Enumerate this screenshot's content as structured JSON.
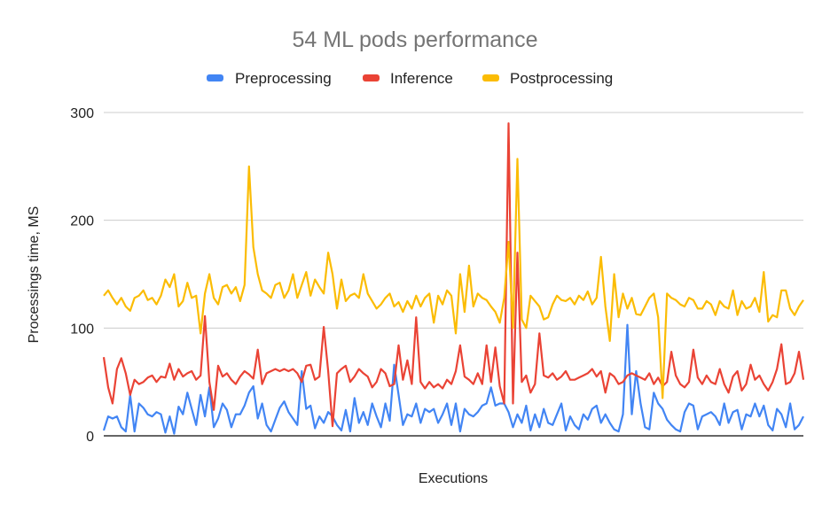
{
  "chart_data": {
    "type": "line",
    "title": "54 ML pods performance",
    "xlabel": "Executions",
    "ylabel": "Processings time, MS",
    "ylim": [
      0,
      300
    ],
    "yticks": [
      "0",
      "100",
      "200",
      "300"
    ],
    "grid": true,
    "legend_position": "top",
    "series": [
      {
        "name": "Preprocessing",
        "color": "#4285F4",
        "values": [
          5,
          18,
          16,
          18,
          8,
          4,
          38,
          4,
          30,
          26,
          20,
          18,
          22,
          20,
          3,
          18,
          2,
          27,
          20,
          40,
          25,
          10,
          38,
          18,
          45,
          8,
          16,
          30,
          24,
          8,
          20,
          20,
          28,
          40,
          46,
          16,
          30,
          10,
          4,
          15,
          26,
          32,
          22,
          16,
          10,
          60,
          25,
          28,
          7,
          18,
          12,
          22,
          18,
          10,
          5,
          24,
          4,
          35,
          12,
          22,
          10,
          30,
          18,
          8,
          30,
          14,
          66,
          38,
          10,
          20,
          18,
          30,
          12,
          25,
          22,
          25,
          12,
          20,
          30,
          10,
          30,
          4,
          25,
          20,
          18,
          22,
          28,
          30,
          45,
          28,
          30,
          30,
          22,
          8,
          20,
          12,
          28,
          5,
          20,
          8,
          25,
          12,
          10,
          20,
          30,
          5,
          18,
          10,
          6,
          20,
          15,
          25,
          28,
          12,
          20,
          12,
          6,
          4,
          20,
          103,
          20,
          60,
          30,
          8,
          6,
          40,
          30,
          25,
          15,
          10,
          6,
          4,
          22,
          30,
          28,
          6,
          18,
          20,
          22,
          18,
          10,
          30,
          12,
          22,
          24,
          6,
          20,
          18,
          30,
          18,
          28,
          10,
          5,
          25,
          20,
          8,
          30,
          6,
          10,
          18
        ]
      },
      {
        "name": "Inference",
        "color": "#EA4335",
        "values": [
          73,
          45,
          30,
          62,
          72,
          58,
          38,
          52,
          48,
          50,
          54,
          56,
          50,
          55,
          54,
          67,
          52,
          62,
          55,
          58,
          60,
          52,
          56,
          111,
          50,
          24,
          65,
          55,
          58,
          52,
          48,
          55,
          60,
          57,
          53,
          80,
          48,
          58,
          60,
          62,
          60,
          62,
          60,
          62,
          58,
          50,
          65,
          66,
          52,
          55,
          101,
          60,
          9,
          58,
          62,
          65,
          50,
          55,
          62,
          58,
          55,
          45,
          50,
          62,
          58,
          46,
          48,
          84,
          52,
          70,
          48,
          110,
          50,
          44,
          50,
          45,
          48,
          44,
          52,
          48,
          60,
          84,
          55,
          52,
          48,
          58,
          48,
          84,
          50,
          82,
          46,
          30,
          290,
          30,
          170,
          50,
          56,
          40,
          48,
          95,
          56,
          54,
          58,
          52,
          55,
          60,
          52,
          52,
          54,
          56,
          58,
          62,
          55,
          60,
          40,
          58,
          55,
          48,
          50,
          56,
          58,
          56,
          54,
          52,
          58,
          48,
          54,
          46,
          50,
          78,
          56,
          48,
          45,
          50,
          80,
          54,
          48,
          56,
          50,
          48,
          62,
          48,
          40,
          55,
          60,
          42,
          48,
          66,
          52,
          56,
          48,
          42,
          50,
          62,
          85,
          48,
          50,
          58,
          78,
          52
        ]
      },
      {
        "name": "Postprocessing",
        "color": "#FBBC04",
        "values": [
          130,
          135,
          128,
          122,
          128,
          120,
          116,
          128,
          130,
          135,
          126,
          128,
          122,
          130,
          145,
          138,
          150,
          120,
          125,
          142,
          128,
          130,
          95,
          132,
          150,
          128,
          122,
          138,
          140,
          132,
          138,
          125,
          140,
          250,
          175,
          150,
          135,
          132,
          128,
          140,
          142,
          128,
          135,
          150,
          128,
          140,
          152,
          130,
          145,
          138,
          132,
          170,
          150,
          118,
          145,
          125,
          130,
          132,
          128,
          150,
          132,
          125,
          118,
          122,
          128,
          132,
          120,
          124,
          115,
          125,
          118,
          130,
          120,
          128,
          132,
          105,
          130,
          122,
          135,
          130,
          95,
          150,
          115,
          158,
          120,
          132,
          128,
          126,
          120,
          115,
          105,
          128,
          180,
          100,
          257,
          108,
          100,
          130,
          125,
          120,
          108,
          110,
          122,
          130,
          126,
          125,
          128,
          122,
          130,
          126,
          134,
          122,
          128,
          166,
          120,
          88,
          150,
          110,
          132,
          118,
          128,
          113,
          112,
          120,
          128,
          132,
          110,
          35,
          132,
          128,
          126,
          122,
          120,
          128,
          126,
          118,
          118,
          125,
          122,
          112,
          125,
          120,
          118,
          135,
          112,
          125,
          118,
          120,
          128,
          115,
          152,
          106,
          112,
          110,
          135,
          135,
          118,
          112,
          120,
          126
        ]
      }
    ]
  }
}
